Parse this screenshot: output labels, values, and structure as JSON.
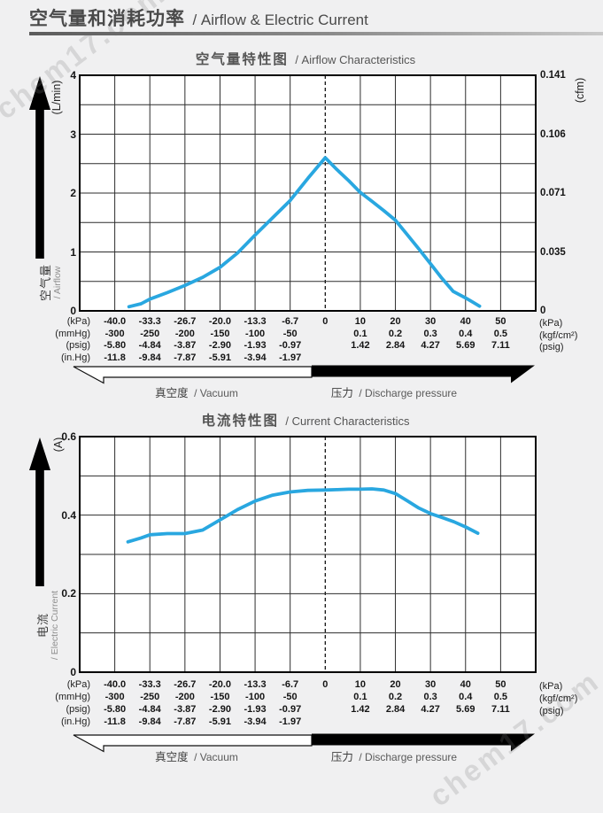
{
  "page": {
    "title_zh": "空气量和消耗功率",
    "title_en": "/ Airflow & Electric Current",
    "watermark": "chem17.com"
  },
  "x_axis": {
    "left_units": [
      "(kPa)",
      "(mmHg)",
      "(psig)",
      "(in.Hg)"
    ],
    "right_units": [
      "(kPa)",
      "(kgf/cm²)",
      "(psig)"
    ],
    "rows": [
      {
        "cols": [
          "-40.0",
          "-33.3",
          "-26.7",
          "-20.0",
          "-13.3",
          "-6.7",
          "0",
          "10",
          "20",
          "30",
          "40",
          "50"
        ]
      },
      {
        "cols": [
          "-300",
          "-250",
          "-200",
          "-150",
          "-100",
          "-50",
          "",
          "0.1",
          "0.2",
          "0.3",
          "0.4",
          "0.5"
        ]
      },
      {
        "cols": [
          "-5.80",
          "-4.84",
          "-3.87",
          "-2.90",
          "-1.93",
          "-0.97",
          "",
          "1.42",
          "2.84",
          "4.27",
          "5.69",
          "7.11"
        ]
      },
      {
        "cols": [
          "-11.8",
          "-9.84",
          "-7.87",
          "-5.91",
          "-3.94",
          "-1.97",
          "",
          "",
          "",
          "",
          "",
          ""
        ]
      }
    ],
    "vacuum_label_zh": "真空度",
    "vacuum_label_en": "/ Vacuum",
    "pressure_label_zh": "压力",
    "pressure_label_en": "/ Discharge pressure",
    "mapping": {
      "total_cols": 13,
      "zero_col": 7,
      "kpa_per_col_vacuum": 6.667,
      "kpa_per_col_pressure": 10
    }
  },
  "chart_data": [
    {
      "type": "line",
      "title_zh": "空气量特性图",
      "title_en": "/ Airflow Characteristics",
      "line_color": "#29a7e0",
      "grid": true,
      "y_axis": {
        "unit": "(L/min)",
        "label_zh": "空气量",
        "label_en": "/ Airflow",
        "min": 0,
        "max": 4,
        "grid_step": 0.5,
        "ticks": [
          {
            "v": 4,
            "label": "4"
          },
          {
            "v": 3,
            "label": "3"
          },
          {
            "v": 2,
            "label": "2"
          },
          {
            "v": 1,
            "label": "1"
          },
          {
            "v": 0,
            "label": "0"
          }
        ]
      },
      "y_axis_right": {
        "unit": "(cfm)",
        "ticks": [
          {
            "v": 4,
            "label": "0.141"
          },
          {
            "v": 3,
            "label": "0.106"
          },
          {
            "v": 2,
            "label": "0.071"
          },
          {
            "v": 1,
            "label": "0.035"
          },
          {
            "v": 0,
            "label": "0"
          }
        ]
      },
      "series": [
        {
          "name": "airflow",
          "x_kpa": [
            -37.3,
            -35,
            -33.3,
            -30,
            -26.7,
            -23.3,
            -20,
            -16.7,
            -13.3,
            -10,
            -6.7,
            -3.3,
            0,
            3.3,
            6.7,
            10,
            13.3,
            16.7,
            20,
            23.3,
            26.7,
            30,
            33.3,
            36.5,
            40,
            42,
            44
          ],
          "y": [
            0.07,
            0.12,
            0.2,
            0.31,
            0.43,
            0.57,
            0.74,
            0.98,
            1.29,
            1.58,
            1.87,
            2.25,
            2.6,
            2.4,
            2.21,
            2.01,
            1.86,
            1.7,
            1.54,
            1.3,
            1.05,
            0.8,
            0.55,
            0.33,
            0.22,
            0.15,
            0.08
          ]
        }
      ]
    },
    {
      "type": "line",
      "title_zh": "电流特性图",
      "title_en": "/ Current Characteristics",
      "line_color": "#29a7e0",
      "grid": true,
      "y_axis": {
        "unit": "(A)",
        "label_zh": "电流",
        "label_en": "/ Electric Current",
        "min": 0,
        "max": 0.6,
        "grid_step": 0.1,
        "ticks": [
          {
            "v": 0.6,
            "label": "0.6"
          },
          {
            "v": 0.4,
            "label": "0.4"
          },
          {
            "v": 0.2,
            "label": "0.2"
          },
          {
            "v": 0,
            "label": "0"
          }
        ]
      },
      "y_axis_right": null,
      "series": [
        {
          "name": "electric-current",
          "x_kpa": [
            -37.5,
            -35,
            -33.3,
            -30,
            -26.7,
            -23.3,
            -20,
            -16.7,
            -13.3,
            -10,
            -6.7,
            -3.3,
            0,
            3.3,
            6.7,
            10,
            13.3,
            16.7,
            20,
            23.3,
            26.7,
            30,
            33.3,
            36.7,
            40,
            43.5
          ],
          "y": [
            0.332,
            0.342,
            0.35,
            0.353,
            0.353,
            0.362,
            0.388,
            0.414,
            0.436,
            0.451,
            0.459,
            0.463,
            0.464,
            0.465,
            0.466,
            0.466,
            0.467,
            0.464,
            0.455,
            0.437,
            0.418,
            0.404,
            0.394,
            0.383,
            0.37,
            0.354
          ]
        }
      ]
    }
  ]
}
